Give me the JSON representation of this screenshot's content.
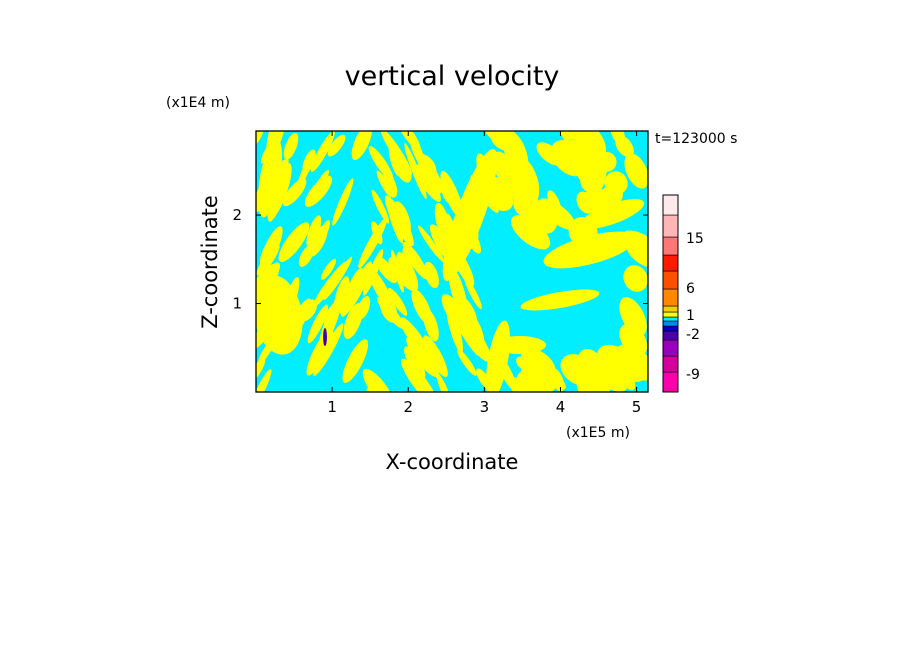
{
  "chart_data": {
    "type": "heatmap",
    "title": "vertical velocity",
    "time_label": "t=123000 s",
    "xlabel": "X-coordinate",
    "ylabel": "Z-coordinate",
    "x_unit": "(x1E5 m)",
    "y_unit": "(x1E4 m)",
    "xlim": [
      0,
      5.15
    ],
    "ylim": [
      0,
      2.95
    ],
    "x_ticks": [
      "1",
      "2",
      "3",
      "4",
      "5"
    ],
    "y_ticks": [
      "1",
      "2"
    ],
    "field_colors": {
      "positive": "#ffff00",
      "negative": "#00eeff"
    },
    "colorbar": {
      "tick_labels": [
        "15",
        "6",
        "1",
        "-2",
        "-9"
      ],
      "colors": [
        "#ff00aa",
        "#d4009c",
        "#9900bb",
        "#4a00b0",
        "#0000cc",
        "#0088ff",
        "#00eeff",
        "#ffff00",
        "#f2d000",
        "#ff8800",
        "#ff5000",
        "#ff1a00",
        "#ff7777",
        "#ffb6b6",
        "#ffeaea"
      ]
    }
  }
}
